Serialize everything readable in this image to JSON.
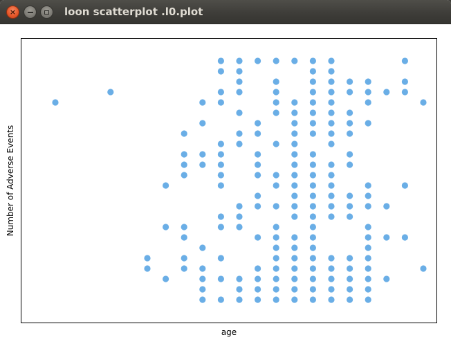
{
  "window": {
    "title": "loon scatterplot .l0.plot",
    "close_glyph": "×"
  },
  "plot": {
    "xlabel": "age",
    "ylabel": "Number of Adverse Events",
    "point_color": "#6aaee6",
    "frame_color": "#000000"
  },
  "chart_data": {
    "type": "scatter",
    "title": "",
    "xlabel": "age",
    "ylabel": "Number of Adverse Events",
    "grid": false,
    "x_range": [
      5,
      26
    ],
    "y_range": [
      1,
      25
    ],
    "points": [
      [
        14,
        1
      ],
      [
        15,
        1
      ],
      [
        16,
        1
      ],
      [
        17,
        1
      ],
      [
        18,
        1
      ],
      [
        19,
        1
      ],
      [
        20,
        1
      ],
      [
        21,
        1
      ],
      [
        22,
        1
      ],
      [
        23,
        1
      ],
      [
        14,
        2
      ],
      [
        16,
        2
      ],
      [
        17,
        2
      ],
      [
        18,
        2
      ],
      [
        19,
        2
      ],
      [
        20,
        2
      ],
      [
        21,
        2
      ],
      [
        22,
        2
      ],
      [
        23,
        2
      ],
      [
        12,
        3
      ],
      [
        14,
        3
      ],
      [
        15,
        3
      ],
      [
        16,
        3
      ],
      [
        17,
        3
      ],
      [
        18,
        3
      ],
      [
        19,
        3
      ],
      [
        20,
        3
      ],
      [
        21,
        3
      ],
      [
        22,
        3
      ],
      [
        23,
        3
      ],
      [
        24,
        3
      ],
      [
        11,
        4
      ],
      [
        13,
        4
      ],
      [
        14,
        4
      ],
      [
        17,
        4
      ],
      [
        18,
        4
      ],
      [
        19,
        4
      ],
      [
        20,
        4
      ],
      [
        21,
        4
      ],
      [
        22,
        4
      ],
      [
        23,
        4
      ],
      [
        26,
        4
      ],
      [
        11,
        5
      ],
      [
        13,
        5
      ],
      [
        15,
        5
      ],
      [
        18,
        5
      ],
      [
        19,
        5
      ],
      [
        20,
        5
      ],
      [
        21,
        5
      ],
      [
        22,
        5
      ],
      [
        23,
        5
      ],
      [
        14,
        6
      ],
      [
        18,
        6
      ],
      [
        19,
        6
      ],
      [
        20,
        6
      ],
      [
        23,
        6
      ],
      [
        13,
        7
      ],
      [
        17,
        7
      ],
      [
        18,
        7
      ],
      [
        19,
        7
      ],
      [
        20,
        7
      ],
      [
        23,
        7
      ],
      [
        24,
        7
      ],
      [
        25,
        7
      ],
      [
        12,
        8
      ],
      [
        13,
        8
      ],
      [
        15,
        8
      ],
      [
        16,
        8
      ],
      [
        18,
        8
      ],
      [
        20,
        8
      ],
      [
        23,
        8
      ],
      [
        15,
        9
      ],
      [
        16,
        9
      ],
      [
        19,
        9
      ],
      [
        20,
        9
      ],
      [
        21,
        9
      ],
      [
        22,
        9
      ],
      [
        16,
        10
      ],
      [
        17,
        10
      ],
      [
        18,
        10
      ],
      [
        19,
        10
      ],
      [
        20,
        10
      ],
      [
        21,
        10
      ],
      [
        22,
        10
      ],
      [
        23,
        10
      ],
      [
        24,
        10
      ],
      [
        17,
        11
      ],
      [
        19,
        11
      ],
      [
        20,
        11
      ],
      [
        21,
        11
      ],
      [
        22,
        11
      ],
      [
        23,
        11
      ],
      [
        12,
        12
      ],
      [
        15,
        12
      ],
      [
        18,
        12
      ],
      [
        19,
        12
      ],
      [
        20,
        12
      ],
      [
        21,
        12
      ],
      [
        23,
        12
      ],
      [
        25,
        12
      ],
      [
        13,
        13
      ],
      [
        15,
        13
      ],
      [
        17,
        13
      ],
      [
        18,
        13
      ],
      [
        19,
        13
      ],
      [
        20,
        13
      ],
      [
        21,
        13
      ],
      [
        13,
        14
      ],
      [
        14,
        14
      ],
      [
        15,
        14
      ],
      [
        17,
        14
      ],
      [
        19,
        14
      ],
      [
        20,
        14
      ],
      [
        21,
        14
      ],
      [
        22,
        14
      ],
      [
        13,
        15
      ],
      [
        14,
        15
      ],
      [
        15,
        15
      ],
      [
        17,
        15
      ],
      [
        19,
        15
      ],
      [
        20,
        15
      ],
      [
        22,
        15
      ],
      [
        15,
        16
      ],
      [
        16,
        16
      ],
      [
        18,
        16
      ],
      [
        19,
        16
      ],
      [
        21,
        16
      ],
      [
        13,
        17
      ],
      [
        16,
        17
      ],
      [
        17,
        17
      ],
      [
        19,
        17
      ],
      [
        20,
        17
      ],
      [
        21,
        17
      ],
      [
        22,
        17
      ],
      [
        14,
        18
      ],
      [
        17,
        18
      ],
      [
        19,
        18
      ],
      [
        20,
        18
      ],
      [
        21,
        18
      ],
      [
        22,
        18
      ],
      [
        23,
        18
      ],
      [
        16,
        19
      ],
      [
        18,
        19
      ],
      [
        19,
        19
      ],
      [
        20,
        19
      ],
      [
        21,
        19
      ],
      [
        22,
        19
      ],
      [
        6,
        20
      ],
      [
        14,
        20
      ],
      [
        15,
        20
      ],
      [
        18,
        20
      ],
      [
        19,
        20
      ],
      [
        20,
        20
      ],
      [
        21,
        20
      ],
      [
        23,
        20
      ],
      [
        26,
        20
      ],
      [
        9,
        21
      ],
      [
        15,
        21
      ],
      [
        16,
        21
      ],
      [
        18,
        21
      ],
      [
        20,
        21
      ],
      [
        21,
        21
      ],
      [
        22,
        21
      ],
      [
        23,
        21
      ],
      [
        24,
        21
      ],
      [
        25,
        21
      ],
      [
        16,
        22
      ],
      [
        18,
        22
      ],
      [
        20,
        22
      ],
      [
        21,
        22
      ],
      [
        22,
        22
      ],
      [
        23,
        22
      ],
      [
        25,
        22
      ],
      [
        15,
        23
      ],
      [
        16,
        23
      ],
      [
        20,
        23
      ],
      [
        21,
        23
      ],
      [
        15,
        24
      ],
      [
        16,
        24
      ],
      [
        17,
        24
      ],
      [
        18,
        24
      ],
      [
        19,
        24
      ],
      [
        20,
        24
      ],
      [
        21,
        24
      ],
      [
        25,
        24
      ]
    ]
  }
}
